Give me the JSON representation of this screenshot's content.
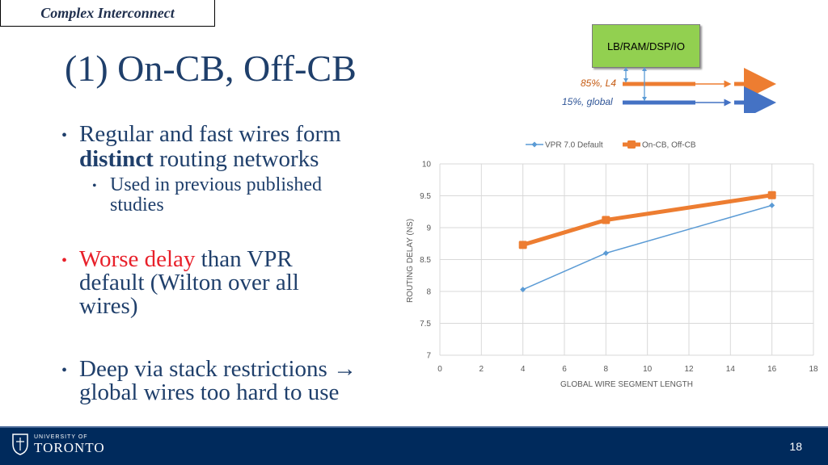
{
  "section_tag": "Complex Interconnect",
  "title": "(1) On-CB, Off-CB",
  "bullets": {
    "b1_line1": "Regular and fast wires form",
    "b1_bold": "distinct",
    "b1_line2_rest": " routing networks",
    "b1_sub_line1": "Used in previous published",
    "b1_sub_line2": "studies",
    "b2_red": "Worse delay",
    "b2_line1_rest": " than VPR",
    "b2_line2": "default (Wilton over all",
    "b2_line3": "wires)",
    "b3_line1": "Deep via stack restrictions →",
    "b3_line2": "global wires too hard to use"
  },
  "diagram": {
    "box_label": "LB/RAM/DSP/IO",
    "label_l4": "85%, L4",
    "label_global": "15%, global",
    "color_l4": "#ed7d31",
    "color_global": "#4472c4"
  },
  "chart_data": {
    "type": "line",
    "xlabel": "GLOBAL WIRE SEGMENT LENGTH",
    "ylabel": "ROUTING DELAY (NS)",
    "xlim": [
      0,
      18
    ],
    "ylim": [
      7,
      10
    ],
    "x_ticks": [
      "0",
      "2",
      "4",
      "6",
      "8",
      "10",
      "12",
      "14",
      "16",
      "18"
    ],
    "y_ticks": [
      "7",
      "7.5",
      "8",
      "8.5",
      "9",
      "9.5",
      "10"
    ],
    "grid": true,
    "legend_position": "top",
    "series": [
      {
        "name": "VPR 7.0 Default",
        "color": "#5b9bd5",
        "x": [
          4,
          8,
          16
        ],
        "y": [
          8.03,
          8.6,
          9.35
        ]
      },
      {
        "name": "On-CB, Off-CB",
        "color": "#ed7d31",
        "x": [
          4,
          8,
          16
        ],
        "y": [
          8.73,
          9.12,
          9.51
        ]
      }
    ]
  },
  "footer": {
    "logo_small": "UNIVERSITY OF",
    "logo_big": "TORONTO",
    "page_number": "18"
  }
}
